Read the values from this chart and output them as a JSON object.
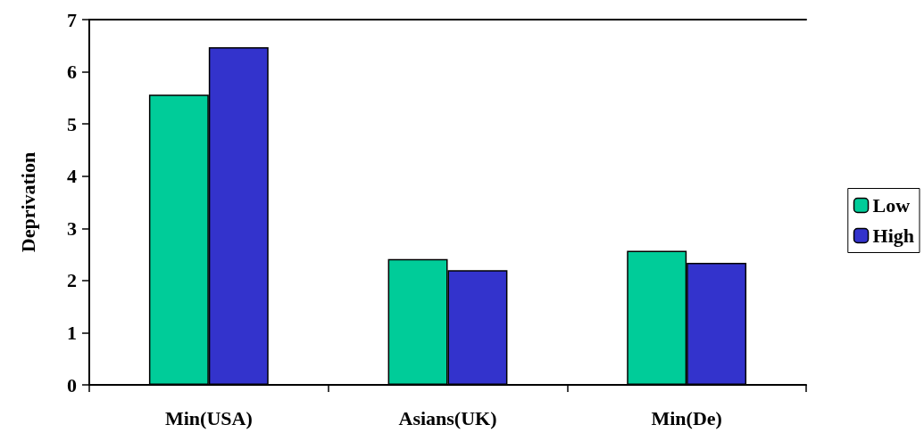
{
  "chart_data": {
    "type": "bar",
    "ylabel": "Deprivation",
    "categories": [
      "Min(USA)",
      "Asians(UK)",
      "Min(De)"
    ],
    "series": [
      {
        "name": "Low",
        "color": "#00cc99",
        "values": [
          5.56,
          2.41,
          2.57
        ]
      },
      {
        "name": "High",
        "color": "#3333cc",
        "values": [
          6.47,
          2.2,
          2.34
        ]
      }
    ],
    "ylim": [
      0,
      7
    ],
    "yticks": [
      0,
      1,
      2,
      3,
      4,
      5,
      6,
      7
    ],
    "grid": false,
    "legend": "right"
  }
}
